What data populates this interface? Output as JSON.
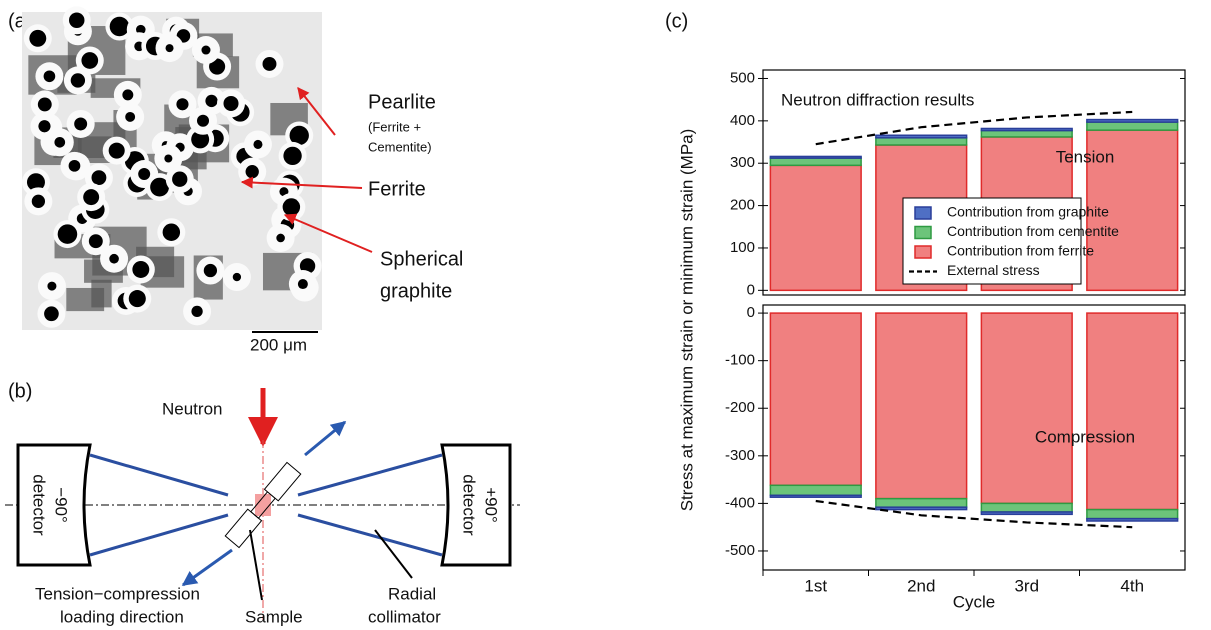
{
  "figure": {
    "a": {
      "label": "(a)",
      "pearlite": "Pearlite",
      "pearlite_note_1": "(Ferrite +",
      "pearlite_note_2": "Cementite)",
      "ferrite": "Ferrite",
      "graphite_1": "Spherical",
      "graphite_2": "graphite",
      "scale_bar": "200 μm"
    },
    "b": {
      "label": "(b)",
      "neutron": "Neutron",
      "left_angle": "−90°",
      "left_detector": "detector",
      "right_angle": "+90°",
      "right_detector": "detector",
      "loading_1": "Tension−compression",
      "loading_2": "loading direction",
      "sample": "Sample",
      "collimator_1": "Radial",
      "collimator_2": "collimator"
    },
    "c": {
      "label": "(c)"
    }
  },
  "chart_data": [
    {
      "type": "bar",
      "stacked": true,
      "title": "Neutron diffraction results",
      "annotation": "Tension",
      "y_label": "Stress at maximum strain or minimum strain (MPa)",
      "series": [
        {
          "name": "Contribution from graphite",
          "color": "#4f6fc4",
          "edge_color": "#2a3f9a",
          "values": [
            4,
            6,
            5,
            6
          ]
        },
        {
          "name": "Contribution from cementite",
          "color": "#6cc47a",
          "edge_color": "#2f9a42",
          "values": [
            17,
            17,
            15,
            19
          ]
        },
        {
          "name": "Contribution from ferrite",
          "color": "#f08080",
          "edge_color": "#e02a2a",
          "values": [
            295,
            343,
            362,
            378
          ]
        },
        {
          "name": "External stress",
          "type": "line",
          "color": "#000000",
          "dashed": true,
          "values": [
            345,
            385,
            408,
            421
          ]
        }
      ],
      "ylim": [
        -11,
        520
      ],
      "yticks": [
        0,
        100,
        200,
        300,
        400,
        500
      ],
      "legend": "inside"
    },
    {
      "type": "bar",
      "stacked": true,
      "annotation": "Compression",
      "categories": [
        "1st",
        "2nd",
        "3rd",
        "4th"
      ],
      "x_label": "Cycle",
      "series": [
        {
          "color": "#4f6fc4",
          "edge_color": "#2a3f9a",
          "values": [
            -4,
            -5,
            -5,
            -5
          ]
        },
        {
          "color": "#6cc47a",
          "edge_color": "#2f9a42",
          "values": [
            -21,
            -18,
            -18,
            -19
          ]
        },
        {
          "color": "#f08080",
          "edge_color": "#e02a2a",
          "values": [
            -362,
            -390,
            -400,
            -413
          ]
        },
        {
          "type": "line",
          "color": "#000000",
          "dashed": true,
          "values": [
            -395,
            -425,
            -440,
            -450
          ]
        }
      ],
      "ylim": [
        -540,
        17
      ],
      "yticks": [
        -500,
        -400,
        -300,
        -200,
        -100,
        0
      ]
    }
  ]
}
